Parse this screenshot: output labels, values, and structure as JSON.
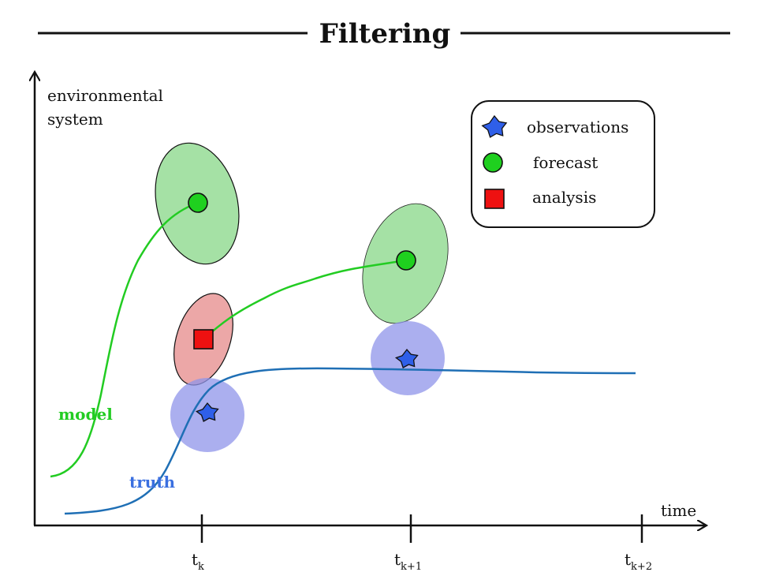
{
  "title": "Filtering",
  "axes": {
    "y_label_line1": "environmental",
    "y_label_line2": "system",
    "x_label": "time"
  },
  "ticks": [
    {
      "main": "t",
      "sub": "k"
    },
    {
      "main": "t",
      "sub": "k+1"
    },
    {
      "main": "t",
      "sub": "k+2"
    }
  ],
  "curves": {
    "model_label": "model",
    "truth_label": "truth"
  },
  "legend": {
    "observations": "observations",
    "forecast": "forecast",
    "analysis": "analysis"
  },
  "colors": {
    "model": "#22cc22",
    "truth": "#1f6fb5",
    "truth_label": "#3a6fe0",
    "observation_marker": "#2f5fe8",
    "observation_ellipse": "#8f94ea",
    "forecast_marker": "#1fd01f",
    "forecast_ellipse": "#7fd47f",
    "analysis_marker": "#ee1111",
    "analysis_ellipse": "#e58a8a"
  }
}
